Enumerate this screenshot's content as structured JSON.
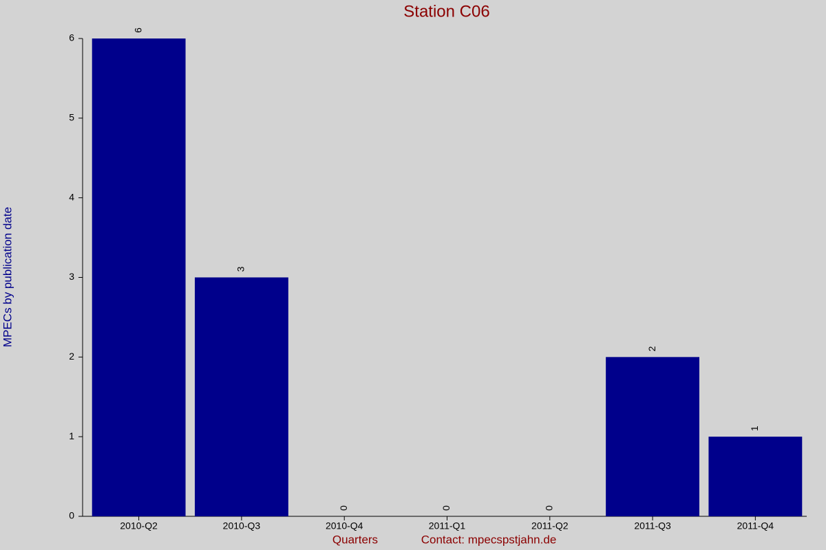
{
  "chart_data": {
    "type": "bar",
    "title": "Station C06",
    "x_label": "Quarters",
    "y_label": "MPECs by publication date",
    "footer": "Contact: mpecspstjahn.de",
    "categories": [
      "2010-Q2",
      "2010-Q3",
      "2010-Q4",
      "2011-Q1",
      "2011-Q2",
      "2011-Q3",
      "2011-Q4"
    ],
    "values": [
      6,
      3,
      0,
      0,
      0,
      2,
      1
    ],
    "color": "#00008b",
    "ylim": [
      0,
      6
    ],
    "yticks": [
      0,
      1,
      2,
      3,
      4,
      5,
      6
    ],
    "grid": false
  }
}
